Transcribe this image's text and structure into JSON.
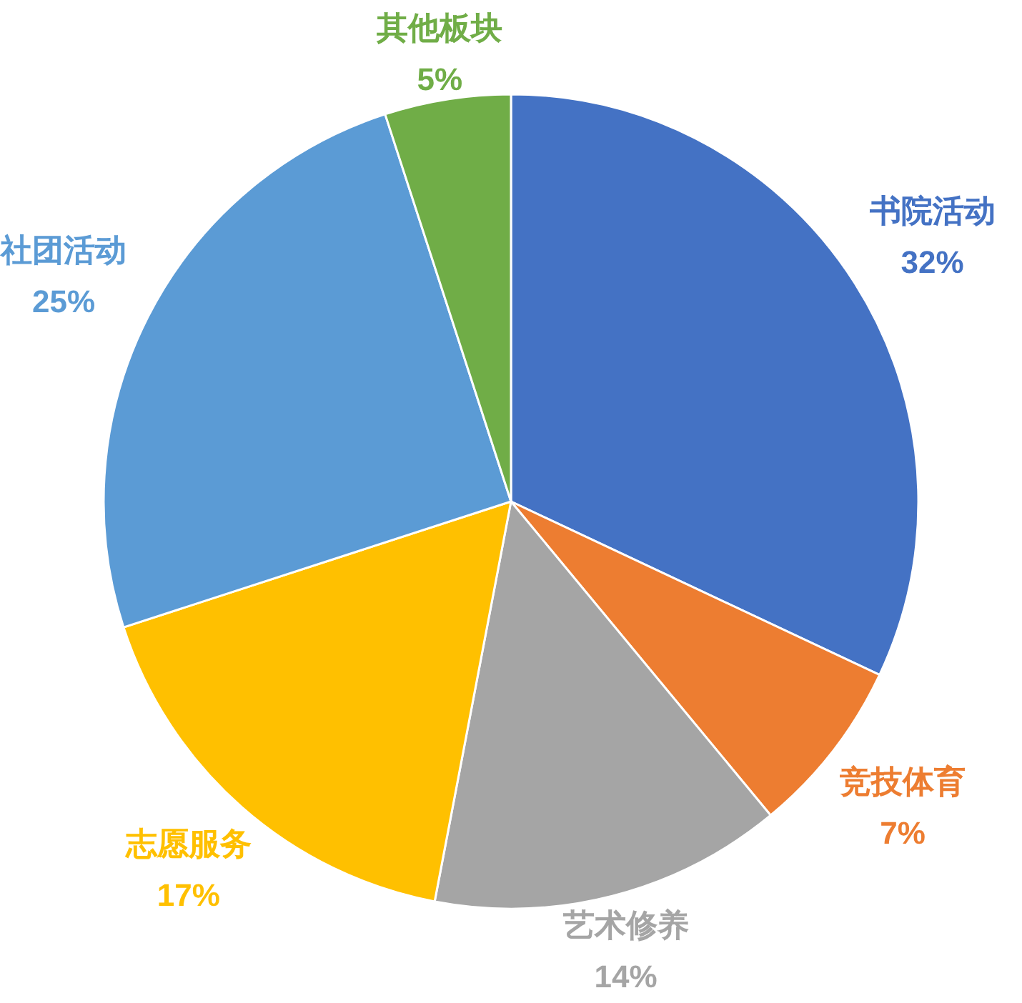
{
  "chart_data": {
    "type": "pie",
    "categories": [
      "书院活动",
      "竞技体育",
      "艺术修养",
      "志愿服务",
      "社团活动",
      "其他板块"
    ],
    "values": [
      32,
      7,
      14,
      17,
      25,
      5
    ],
    "value_labels": [
      "32%",
      "7%",
      "14%",
      "17%",
      "25%",
      "5%"
    ],
    "colors": [
      "#4472c4",
      "#ed7d31",
      "#a5a5a5",
      "#ffc000",
      "#5b9bd5",
      "#70ad47"
    ]
  }
}
